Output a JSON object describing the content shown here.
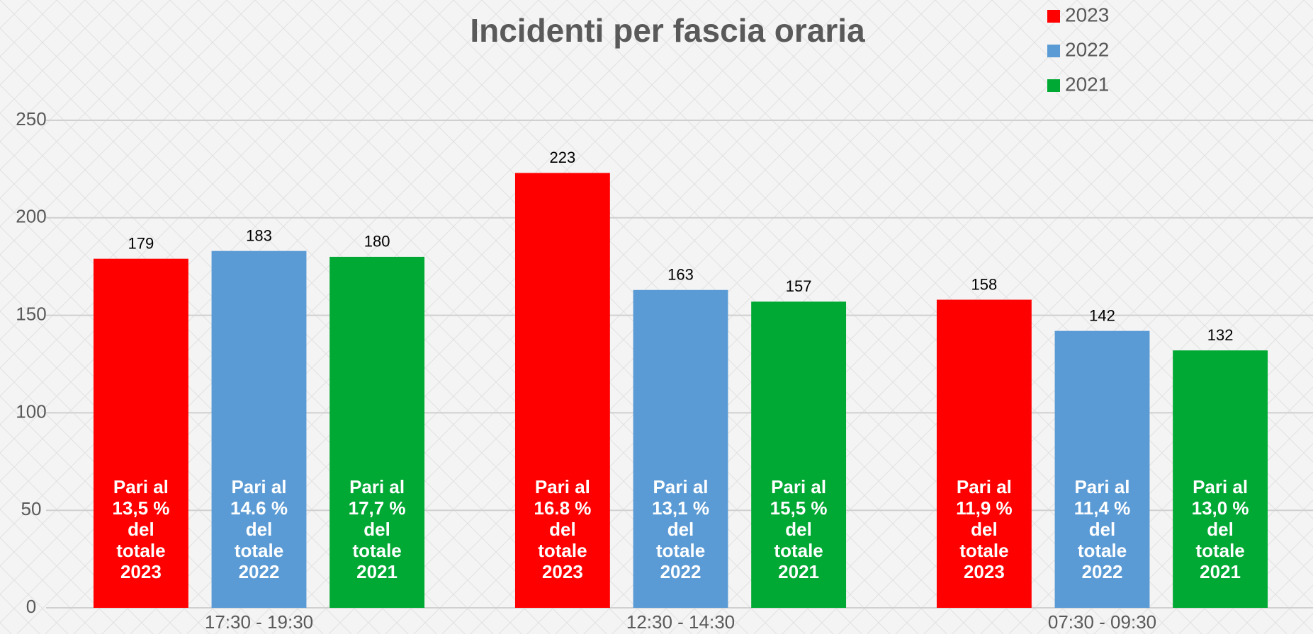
{
  "chart_data": {
    "type": "bar",
    "title": "Incidenti per fascia oraria",
    "categories": [
      "17:30 - 19:30",
      "12:30 - 14:30",
      "07:30 - 09:30"
    ],
    "series": [
      {
        "name": "2023",
        "color": "#ff0000",
        "values": [
          179,
          223,
          158
        ],
        "notes": [
          [
            "Pari al",
            "13,5 %",
            "del",
            "totale",
            "2023"
          ],
          [
            "Pari al",
            "16.8 %",
            "del",
            "totale",
            "2023"
          ],
          [
            "Pari al",
            "11,9 %",
            "del",
            "totale",
            "2023"
          ]
        ]
      },
      {
        "name": "2022",
        "color": "#5b9bd5",
        "values": [
          183,
          163,
          142
        ],
        "notes": [
          [
            "Pari al",
            "14.6 %",
            "del",
            "totale",
            "2022"
          ],
          [
            "Pari al",
            "13,1 %",
            "del",
            "totale",
            "2022"
          ],
          [
            "Pari al",
            "11,4 %",
            "del",
            "totale",
            "2022"
          ]
        ]
      },
      {
        "name": "2021",
        "color": "#00a933",
        "values": [
          180,
          157,
          132
        ],
        "notes": [
          [
            "Pari al",
            "17,7 %",
            "del",
            "totale",
            "2021"
          ],
          [
            "Pari al",
            "15,5 %",
            "del",
            "totale",
            "2021"
          ],
          [
            "Pari al",
            "13,0 %",
            "del",
            "totale",
            "2021"
          ]
        ]
      }
    ],
    "ylim": [
      0,
      250
    ],
    "yticks": [
      0,
      50,
      100,
      150,
      200,
      250
    ],
    "grid": true,
    "legend": "top-right"
  }
}
